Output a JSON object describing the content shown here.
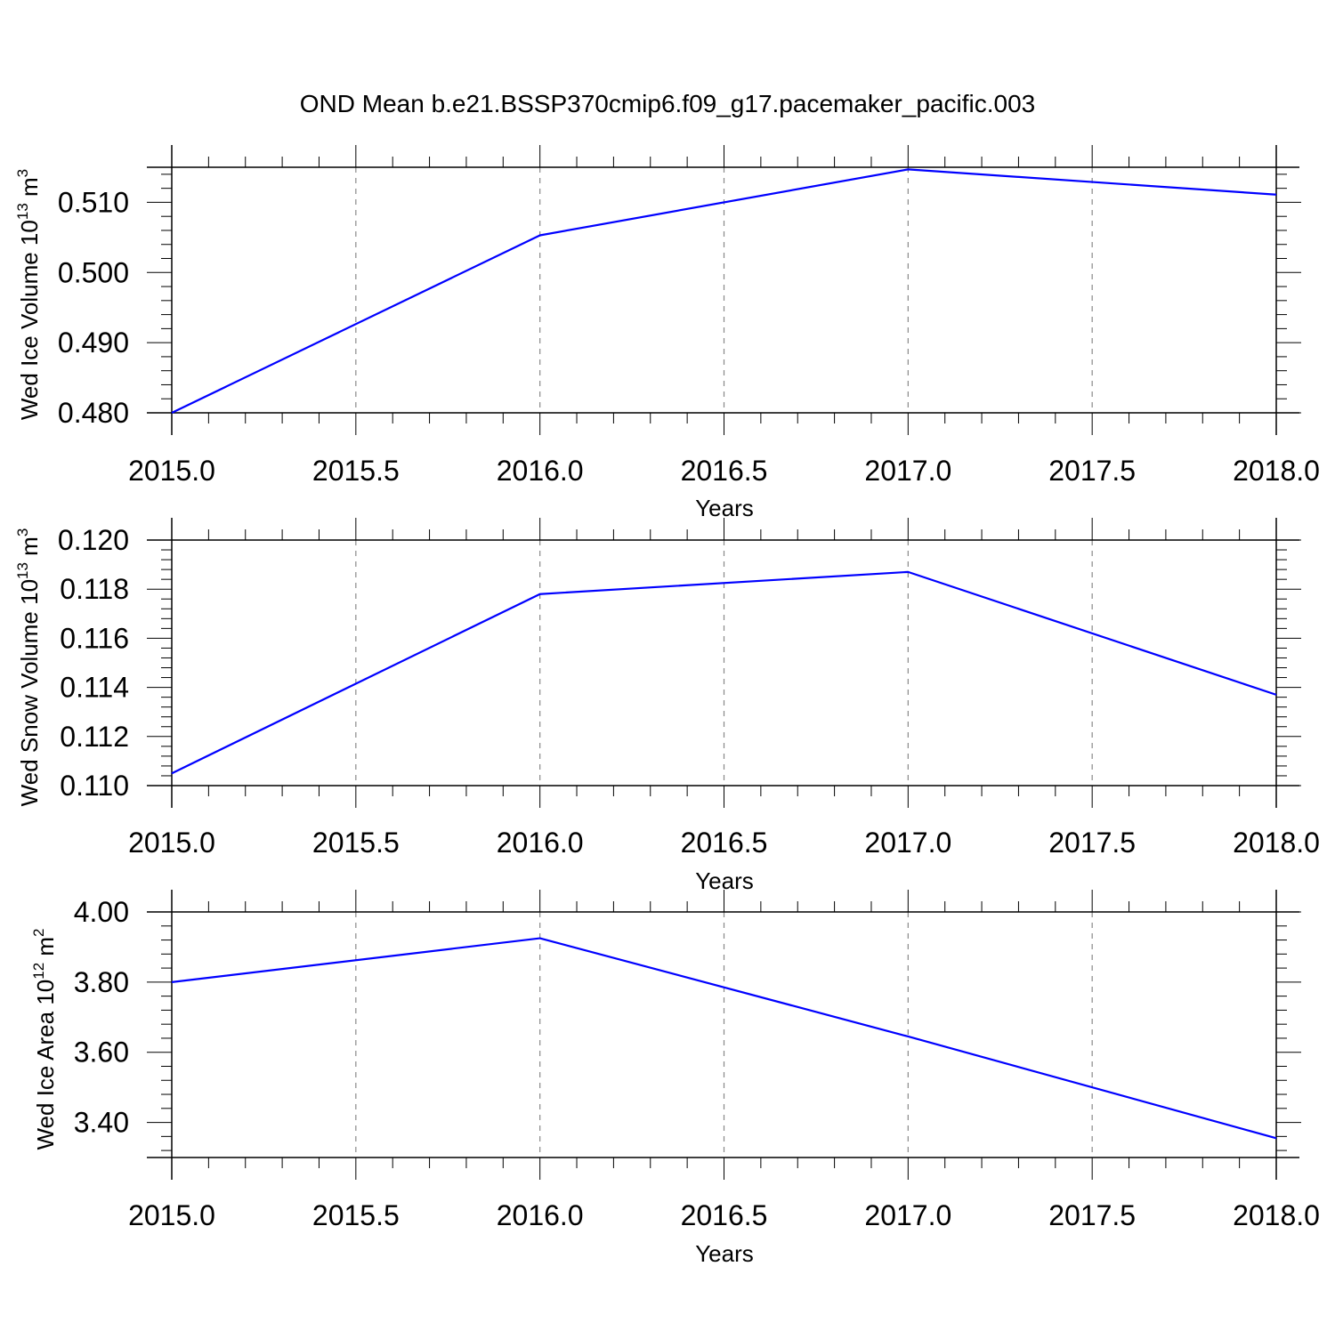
{
  "title": "OND Mean b.e21.BSSP370cmip6.f09_g17.pacemaker_pacific.003",
  "colors": {
    "line": "#0000ff",
    "axis": "#000000",
    "grid": "#888888"
  },
  "chart_data": [
    {
      "type": "line",
      "xlabel": "Years",
      "ylabel": {
        "text": "Wed Ice Volume 10",
        "exp": "13",
        "unit": " m",
        "unit_exp": "3"
      },
      "xlim": [
        2015.0,
        2018.0
      ],
      "ylim": [
        0.48,
        0.515
      ],
      "x_ticks": [
        "2015.0",
        "2015.5",
        "2016.0",
        "2016.5",
        "2017.0",
        "2017.5",
        "2018.0"
      ],
      "y_ticks": [
        "0.480",
        "0.490",
        "0.500",
        "0.510"
      ],
      "grid": "vertical dashed",
      "x": [
        2015,
        2016,
        2017,
        2018
      ],
      "series": [
        {
          "values": [
            0.48,
            0.5053,
            0.5147,
            0.5111
          ]
        }
      ]
    },
    {
      "type": "line",
      "xlabel": "Years",
      "ylabel": {
        "text": "Wed Snow Volume 10",
        "exp": "13",
        "unit": " m",
        "unit_exp": "3"
      },
      "xlim": [
        2015.0,
        2018.0
      ],
      "ylim": [
        0.11,
        0.12
      ],
      "x_ticks": [
        "2015.0",
        "2015.5",
        "2016.0",
        "2016.5",
        "2017.0",
        "2017.5",
        "2018.0"
      ],
      "y_ticks": [
        "0.110",
        "0.112",
        "0.114",
        "0.116",
        "0.118",
        "0.120"
      ],
      "grid": "vertical dashed",
      "x": [
        2015,
        2016,
        2017,
        2018
      ],
      "series": [
        {
          "values": [
            0.1105,
            0.1178,
            0.1187,
            0.1137
          ]
        }
      ]
    },
    {
      "type": "line",
      "xlabel": "Years",
      "ylabel": {
        "text": "Wed Ice Area 10",
        "exp": "12",
        "unit": " m",
        "unit_exp": "2"
      },
      "xlim": [
        2015.0,
        2018.0
      ],
      "ylim": [
        3.3,
        4.0
      ],
      "x_ticks": [
        "2015.0",
        "2015.5",
        "2016.0",
        "2016.5",
        "2017.0",
        "2017.5",
        "2018.0"
      ],
      "y_ticks": [
        "3.40",
        "3.60",
        "3.80",
        "4.00"
      ],
      "grid": "vertical dashed",
      "x": [
        2015,
        2016,
        2017,
        2018
      ],
      "series": [
        {
          "values": [
            3.8,
            3.925,
            3.645,
            3.355
          ]
        }
      ]
    }
  ]
}
